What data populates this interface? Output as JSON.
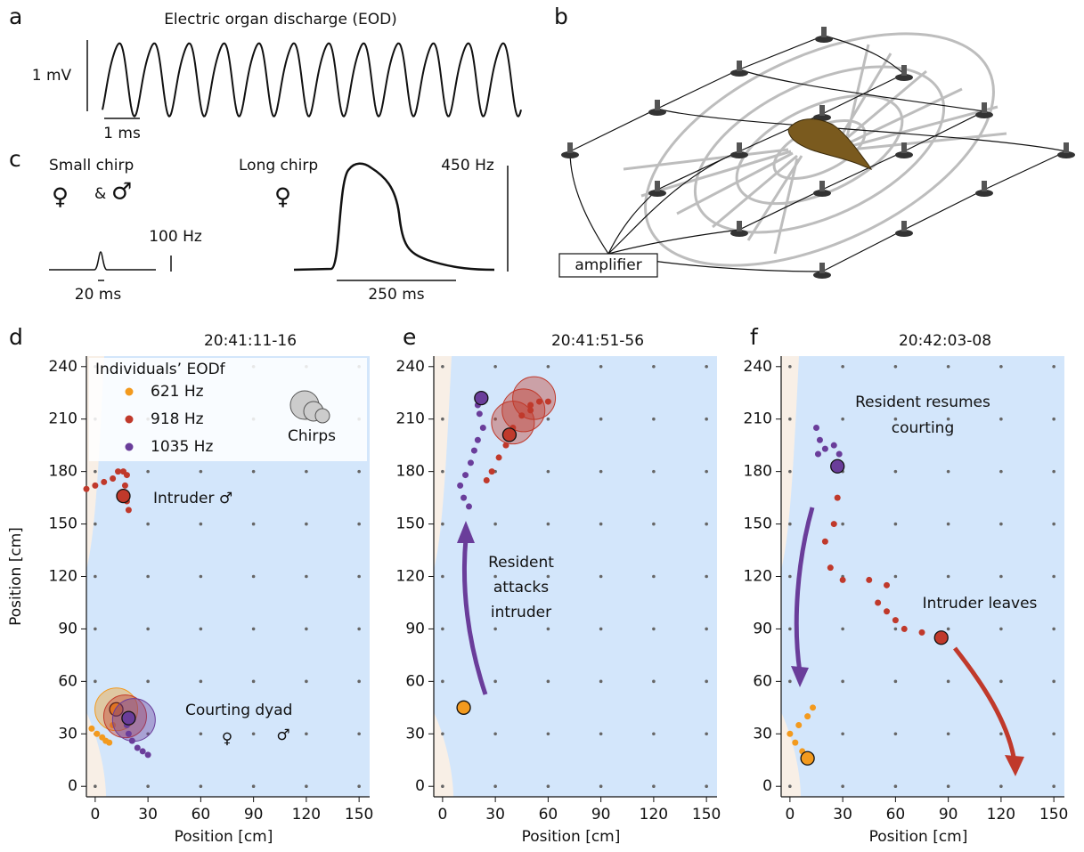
{
  "panel_labels": [
    "a",
    "b",
    "c",
    "d",
    "e",
    "f"
  ],
  "panel_a": {
    "title": "Electric organ discharge (EOD)",
    "scale_y": "1 mV",
    "scale_x": "1 ms"
  },
  "panel_b": {
    "box": "amplifier"
  },
  "panel_c": {
    "small_title": "Small chirp",
    "small_female": "♀",
    "small_and": "&",
    "small_male": "♂",
    "small_scale_y": "100 Hz",
    "small_scale_x": "20 ms",
    "long_title": "Long chirp",
    "long_female": "♀",
    "long_scale_y": "450 Hz",
    "long_scale_x": "250 ms"
  },
  "chart_data": [
    {
      "type": "scatter",
      "title": "20:41:11-16",
      "xlabel": "Position [cm]",
      "ylabel": "Position [cm]",
      "xlim": [
        -5,
        156
      ],
      "ylim": [
        -6,
        246
      ],
      "xticks": [
        0,
        30,
        60,
        90,
        120,
        150
      ],
      "yticks": [
        0,
        30,
        60,
        90,
        120,
        150,
        180,
        210,
        240
      ],
      "legend": "upper left",
      "legend_title": "Individuals’ EODf",
      "legend_chirps": "Chirps",
      "annotations": [
        "Intruder ♂",
        "Courting dyad",
        "♀",
        "♂"
      ],
      "series": [
        {
          "name": "621 Hz",
          "color": "#f39a1e",
          "x": [
            -2,
            1,
            4,
            6,
            8,
            10,
            12
          ],
          "values": [
            33,
            30,
            28,
            26,
            25,
            35,
            44
          ],
          "chirp_x": [
            12
          ],
          "chirp_y": [
            44
          ]
        },
        {
          "name": "918 Hz",
          "color": "#c0392b",
          "x": [
            -5,
            0,
            5,
            10,
            13,
            16,
            18,
            17,
            19,
            18,
            16
          ],
          "values": [
            170,
            172,
            174,
            176,
            180,
            180,
            178,
            172,
            158,
            163,
            166
          ],
          "chirp_x": [
            17
          ],
          "chirp_y": [
            40
          ]
        },
        {
          "name": "1035 Hz",
          "color": "#6a3d9a",
          "x": [
            30,
            27,
            24,
            21,
            19,
            18,
            19
          ],
          "values": [
            18,
            20,
            22,
            26,
            30,
            35,
            39
          ],
          "chirp_x": [
            22
          ],
          "chirp_y": [
            38
          ]
        }
      ]
    },
    {
      "type": "scatter",
      "title": "20:41:51-56",
      "xlabel": "Position [cm]",
      "xlim": [
        -5,
        156
      ],
      "ylim": [
        -6,
        246
      ],
      "xticks": [
        0,
        30,
        60,
        90,
        120,
        150
      ],
      "yticks": [
        0,
        30,
        60,
        90,
        120,
        150,
        180,
        210,
        240
      ],
      "annotations": [
        "Resident",
        "attacks",
        "intruder"
      ],
      "series": [
        {
          "name": "621 Hz",
          "color": "#f39a1e",
          "x": [
            12
          ],
          "values": [
            45
          ],
          "chirp_x": [],
          "chirp_y": []
        },
        {
          "name": "918 Hz",
          "color": "#c0392b",
          "x": [
            25,
            28,
            32,
            36,
            40,
            45,
            50,
            55,
            60,
            50,
            38
          ],
          "values": [
            175,
            180,
            188,
            195,
            205,
            212,
            218,
            220,
            220,
            215,
            201
          ],
          "chirp_x": [
            52,
            46,
            40
          ],
          "chirp_y": [
            222,
            215,
            208
          ]
        },
        {
          "name": "1035 Hz",
          "color": "#6a3d9a",
          "x": [
            15,
            12,
            10,
            13,
            16,
            18,
            20,
            23,
            21,
            20,
            22
          ],
          "values": [
            160,
            165,
            172,
            178,
            185,
            192,
            198,
            205,
            213,
            218,
            222
          ],
          "chirp_x": [],
          "chirp_y": []
        }
      ]
    },
    {
      "type": "scatter",
      "title": "20:42:03-08",
      "xlabel": "Position [cm]",
      "xlim": [
        -5,
        156
      ],
      "ylim": [
        -6,
        246
      ],
      "xticks": [
        0,
        30,
        60,
        90,
        120,
        150
      ],
      "yticks": [
        0,
        30,
        60,
        90,
        120,
        150,
        180,
        210,
        240
      ],
      "annotations": [
        "Resident resumes",
        "courting",
        "Intruder leaves"
      ],
      "series": [
        {
          "name": "621 Hz",
          "color": "#f39a1e",
          "x": [
            13,
            10,
            5,
            0,
            3,
            7,
            10
          ],
          "values": [
            45,
            40,
            35,
            30,
            25,
            20,
            16
          ],
          "chirp_x": [],
          "chirp_y": []
        },
        {
          "name": "918 Hz",
          "color": "#c0392b",
          "x": [
            27,
            25,
            20,
            23,
            30,
            45,
            55,
            50,
            55,
            60,
            65,
            75,
            86
          ],
          "values": [
            165,
            150,
            140,
            125,
            118,
            118,
            115,
            105,
            100,
            95,
            90,
            88,
            85
          ],
          "chirp_x": [],
          "chirp_y": []
        },
        {
          "name": "1035 Hz",
          "color": "#6a3d9a",
          "x": [
            15,
            17,
            16,
            20,
            25,
            28,
            27
          ],
          "values": [
            205,
            198,
            190,
            193,
            195,
            190,
            183
          ],
          "chirp_x": [],
          "chirp_y": []
        }
      ]
    }
  ]
}
